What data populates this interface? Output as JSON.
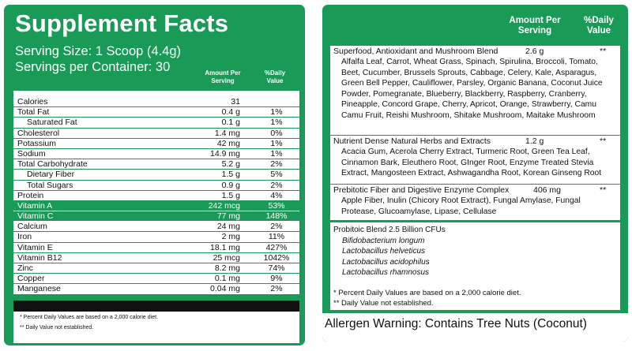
{
  "left": {
    "title": "Supplement Facts",
    "serving_size": "Serving Size: 1 Scoop (4.4g)",
    "servings_per_container": "Servings per Container: 30",
    "col_amount": "Amount Per Serving",
    "col_dv": "%Daily Value",
    "rows": [
      {
        "name": "Calories",
        "amount": "31",
        "dv": "",
        "style": "white"
      },
      {
        "name": "Total Fat",
        "amount": "0.4 g",
        "dv": "1%",
        "style": "white"
      },
      {
        "name": "Saturated Fat",
        "amount": "0.1 g",
        "dv": "1%",
        "style": "white-sub"
      },
      {
        "name": "Cholesterol",
        "amount": "1.4 mg",
        "dv": "0%",
        "style": "white"
      },
      {
        "name": "Potassium",
        "amount": "42 mg",
        "dv": "1%",
        "style": "white"
      },
      {
        "name": "Sodium",
        "amount": "14.9 mg",
        "dv": "1%",
        "style": "white"
      },
      {
        "name": "Total Carbohydrate",
        "amount": "5.2 g",
        "dv": "2%",
        "style": "white"
      },
      {
        "name": "Dietary Fiber",
        "amount": "1.5 g",
        "dv": "5%",
        "style": "white-sub"
      },
      {
        "name": "Total Sugars",
        "amount": "0.9 g",
        "dv": "2%",
        "style": "white-sub"
      },
      {
        "name": "Protein",
        "amount": "1.5 g",
        "dv": "4%",
        "style": "white"
      },
      {
        "name": "Vitamin A",
        "amount": "242 mcg",
        "dv": "53%",
        "style": "green"
      },
      {
        "name": "Vitamin C",
        "amount": "77 mg",
        "dv": "148%",
        "style": "green"
      },
      {
        "name": "Calcium",
        "amount": "24 mg",
        "dv": "2%",
        "style": "white"
      },
      {
        "name": "Iron",
        "amount": "2 mg",
        "dv": "11%",
        "style": "white"
      },
      {
        "name": "Vitamin E",
        "amount": "18.1 mg",
        "dv": "427%",
        "style": "white"
      },
      {
        "name": "Vitamin B12",
        "amount": "25 mcg",
        "dv": "1042%",
        "style": "white"
      },
      {
        "name": "Zinc",
        "amount": "8.2 mg",
        "dv": "74%",
        "style": "white"
      },
      {
        "name": "Copper",
        "amount": "0.1 mg",
        "dv": "9%",
        "style": "white"
      },
      {
        "name": "Manganese",
        "amount": "0.04 mg",
        "dv": "2%",
        "style": "white"
      }
    ],
    "footnote_1": "* Percent Daily Values are based on a 2,000 calorie diet.",
    "footnote_2": "** Daily Value not established."
  },
  "right": {
    "col_amount": "Amount Per Serving",
    "col_dv": "%Daily Value",
    "blends": [
      {
        "name": "Superfood, Antioxidant and Mushroom Blend",
        "amount": "2.6 g",
        "dv": "**",
        "ingredients": "Alfalfa Leaf, Carrot, Wheat Grass,  Spinach, Spirulina, Broccoli, Tomato, Beet, Cucumber, Brussels Sprouts, Cabbage, Celery, Kale, Asparagus, Green Bell Pepper, Cauliflower, Parsley, Organic Banana, Coconut Juice Powder, Pomegranate, Blueberry, Blackberry, Raspberry, Cranberry, Pineapple, Concord Grape, Cherry, Apricot, Orange, Strawberry, Camu Camu Fruit, Reishi Mushroom, Shitake Mushroom, Maitake Mushroom"
      },
      {
        "name": "Nutrient Dense Natural Herbs and Extracts",
        "amount": "1.2 g",
        "dv": "**",
        "ingredients": "Acacia Gum, Acerola Cherry Extract, Turmeric Root, Green Tea Leaf, Cinnamon Bark, Eleuthero Root, GInger Root, Enzyme Treated Stevia Extract, Mangosteen Extract, Ashwagandha Root, Korean Ginseng Root"
      },
      {
        "name": "Prebitotic Fiber and Digestive Enzyme Complex",
        "amount": "406 mg",
        "dv": "**",
        "ingredients": "Apple Fiber, Inulin (Chicory Root Extract), Fungal Amylase, Fungal Protease, Glucoamylase, Lipase, Cellulase"
      }
    ],
    "probiotic": {
      "title": "Probitoic Blend 2.5 Billion CFUs",
      "strains": [
        "Bifidobacterium longum",
        "Lactobacillus helveticus",
        "Lactobacillus acidophilus",
        "Lactobacillus rhamnosus"
      ]
    },
    "footnote_1": "* Percent Daily Values are based on a 2,000 calorie diet.",
    "footnote_2": "** Daily Value not established.",
    "allergen": "Allergen Warning: Contains Tree Nuts (Coconut)"
  }
}
